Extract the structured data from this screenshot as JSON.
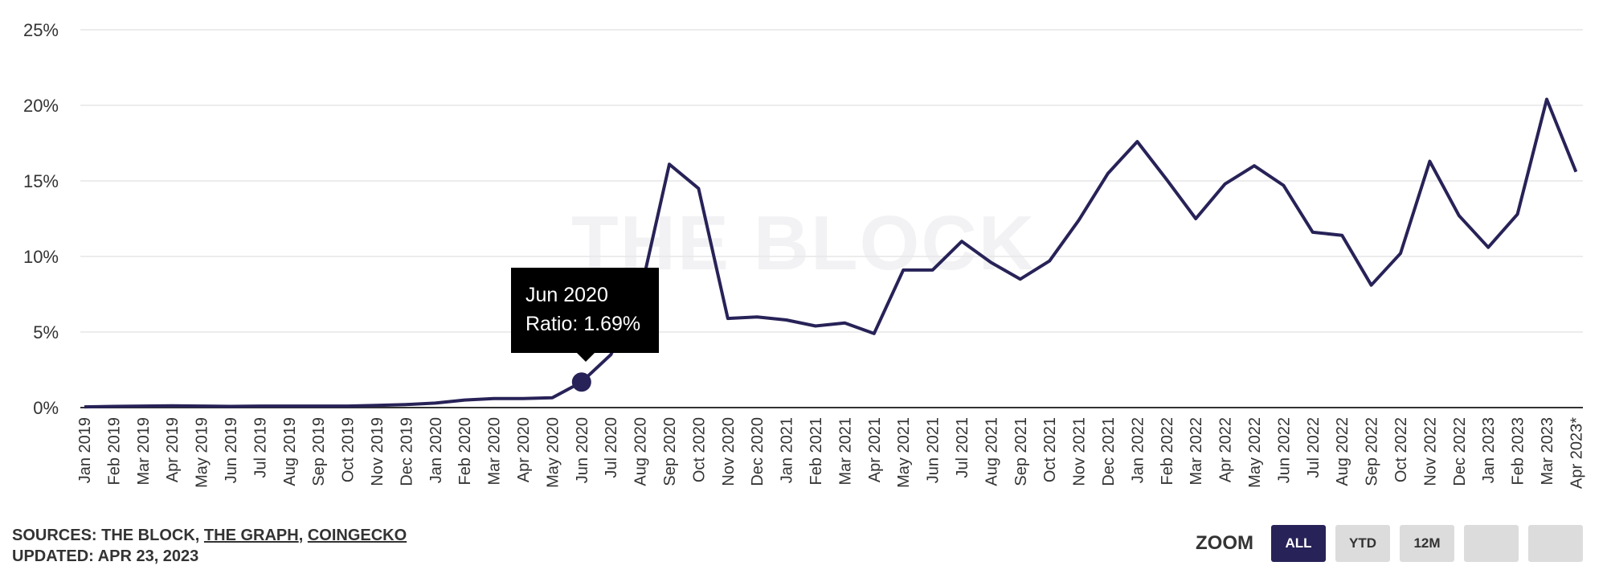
{
  "chart_data": {
    "type": "line",
    "y_axis": {
      "ticks": [
        "0%",
        "5%",
        "10%",
        "15%",
        "20%",
        "25%"
      ],
      "ylim": [
        0,
        25
      ],
      "unit": "%"
    },
    "categories": [
      "Jan 2019",
      "Feb 2019",
      "Mar 2019",
      "Apr 2019",
      "May 2019",
      "Jun 2019",
      "Jul 2019",
      "Aug 2019",
      "Sep 2019",
      "Oct 2019",
      "Nov 2019",
      "Dec 2019",
      "Jan 2020",
      "Feb 2020",
      "Mar 2020",
      "Apr 2020",
      "May 2020",
      "Jun 2020",
      "Jul 2020",
      "Aug 2020",
      "Sep 2020",
      "Oct 2020",
      "Nov 2020",
      "Dec 2020",
      "Jan 2021",
      "Feb 2021",
      "Mar 2021",
      "Apr 2021",
      "May 2021",
      "Jun 2021",
      "Jul 2021",
      "Aug 2021",
      "Sep 2021",
      "Oct 2021",
      "Nov 2021",
      "Dec 2021",
      "Jan 2022",
      "Feb 2022",
      "Mar 2022",
      "Apr 2022",
      "May 2022",
      "Jun 2022",
      "Jul 2022",
      "Aug 2022",
      "Sep 2022",
      "Oct 2022",
      "Nov 2022",
      "Dec 2022",
      "Jan 2023",
      "Feb 2023",
      "Mar 2023",
      "Apr 2023*"
    ],
    "series": [
      {
        "values": [
          0.05,
          0.08,
          0.1,
          0.12,
          0.1,
          0.08,
          0.1,
          0.1,
          0.1,
          0.1,
          0.15,
          0.2,
          0.3,
          0.5,
          0.6,
          0.6,
          0.65,
          1.69,
          3.5,
          7.5,
          16.1,
          14.5,
          5.9,
          6.0,
          5.8,
          5.4,
          5.6,
          4.9,
          9.1,
          9.1,
          11.0,
          9.6,
          8.5,
          9.7,
          12.4,
          15.5,
          17.6,
          15.1,
          12.5,
          14.8,
          16.0,
          14.7,
          11.6,
          11.4,
          8.1,
          10.2,
          16.3,
          12.7,
          10.6,
          12.8,
          20.4,
          15.6
        ]
      }
    ],
    "line_color": "#272257",
    "grid": true,
    "watermark": "THE BLOCK",
    "tooltip": {
      "title": "Jun 2020",
      "text": "Ratio: 1.69%",
      "category_index": 17
    }
  },
  "footer": {
    "sources_prefix": "SOURCES: THE BLOCK, ",
    "source_link_1": "THE GRAPH",
    "separator": ", ",
    "source_link_2": "COINGECKO",
    "updated": "UPDATED: APR 23, 2023"
  },
  "zoom": {
    "label": "ZOOM",
    "buttons": [
      {
        "label": "ALL",
        "active": true
      },
      {
        "label": "YTD",
        "active": false
      },
      {
        "label": "12M",
        "active": false
      },
      {
        "label": "",
        "active": false
      },
      {
        "label": "",
        "active": false
      }
    ]
  },
  "colors": {
    "accent": "#272257",
    "grid": "#e6e6e6",
    "axis": "#333333"
  }
}
